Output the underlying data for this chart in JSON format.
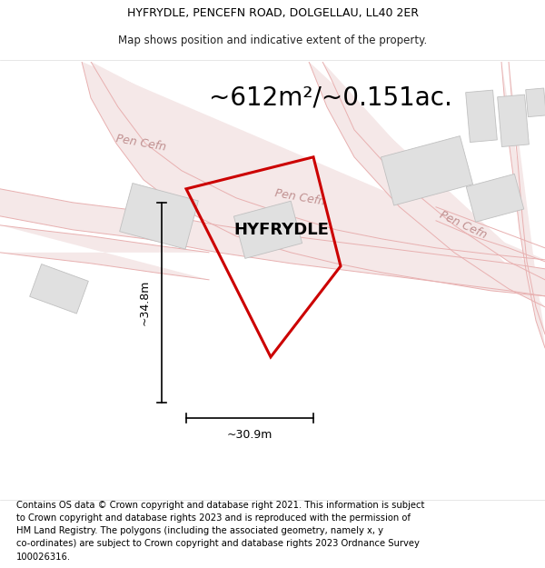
{
  "title_line1": "HYFRYDLE, PENCEFN ROAD, DOLGELLAU, LL40 2ER",
  "title_line2": "Map shows position and indicative extent of the property.",
  "area_text": "~612m²/~0.151ac.",
  "property_label": "HYFRYDLE",
  "road_label": "Pen Cefn",
  "dim_height": "~34.8m",
  "dim_width": "~30.9m",
  "footer_text": "Contains OS data © Crown copyright and database right 2021. This information is subject to Crown copyright and database rights 2023 and is reproduced with the permission of HM Land Registry. The polygons (including the associated geometry, namely x, y co-ordinates) are subject to Crown copyright and database rights 2023 Ordnance Survey 100026316.",
  "bg_color": "#ffffff",
  "map_bg_color": "#ffffff",
  "road_fill_color": "#f5e8e8",
  "road_line_color": "#e8b0b0",
  "road_edge_color": "#d0d0d0",
  "building_color": "#e0e0e0",
  "building_edge_color": "#c0c0c0",
  "property_outline_color": "#cc0000",
  "dim_line_color": "#000000",
  "title_fontsize": 9,
  "area_fontsize": 20,
  "label_fontsize": 13,
  "road_label_fontsize": 9,
  "dim_fontsize": 9,
  "footer_fontsize": 7.2
}
